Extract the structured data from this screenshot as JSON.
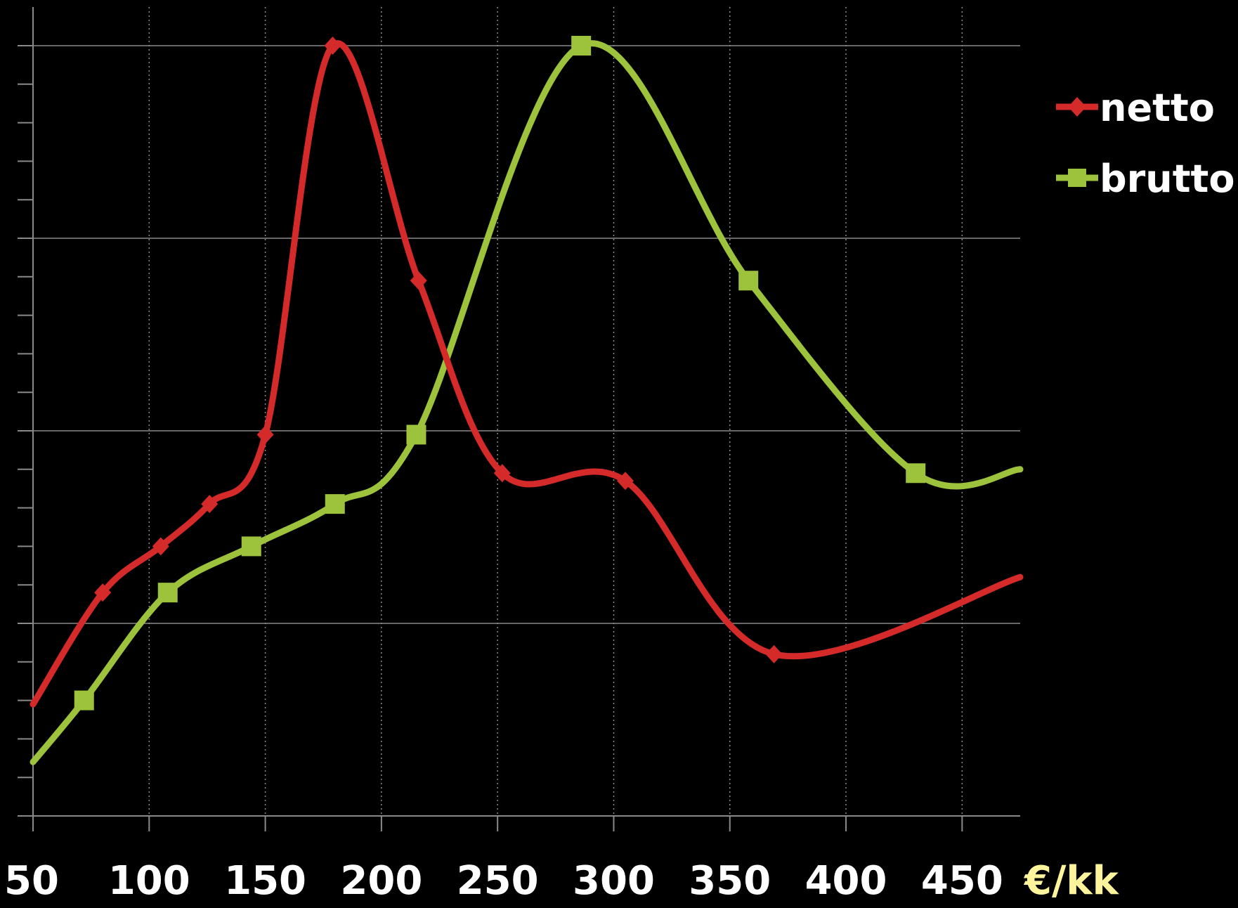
{
  "chart_data": {
    "type": "line",
    "xlabel": "€/kk",
    "ylabel": "",
    "xlim": [
      50,
      475
    ],
    "ylim": [
      0,
      100
    ],
    "x_ticks": [
      "50",
      "100",
      "150",
      "200",
      "250",
      "300",
      "350",
      "400",
      "450"
    ],
    "x_tick_values": [
      50,
      100,
      150,
      200,
      250,
      300,
      350,
      400,
      450
    ],
    "grid": true,
    "legend_position": "top-right",
    "colors": {
      "background": "#000000",
      "grid": "#8a8a8a",
      "tick_text": "#ffffff",
      "unit_text": "#fdf49c",
      "netto": "#d42a2a",
      "brutto": "#9dc23c"
    },
    "series": [
      {
        "name": "netto",
        "marker": "diamond",
        "points": [
          [
            50,
            14.5
          ],
          [
            80,
            29
          ],
          [
            105,
            35
          ],
          [
            126,
            40.5
          ],
          [
            150,
            49.5
          ],
          [
            179,
            100
          ],
          [
            216,
            69.5
          ],
          [
            252,
            44.5
          ],
          [
            305,
            43.5
          ],
          [
            369,
            21
          ],
          [
            475,
            31
          ]
        ]
      },
      {
        "name": "brutto",
        "marker": "square",
        "points": [
          [
            50,
            7
          ],
          [
            72,
            15
          ],
          [
            108,
            29
          ],
          [
            144,
            35
          ],
          [
            180,
            40.5
          ],
          [
            215,
            49.5
          ],
          [
            286,
            100
          ],
          [
            358,
            69.5
          ],
          [
            430,
            44.5
          ],
          [
            475,
            45
          ]
        ]
      }
    ]
  }
}
